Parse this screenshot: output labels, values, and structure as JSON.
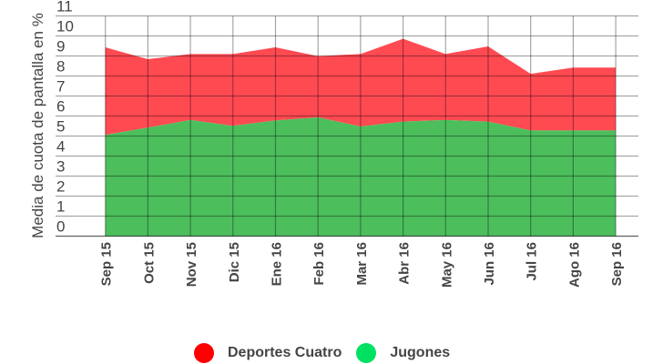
{
  "chart_data": {
    "type": "area",
    "stacked": true,
    "title": "",
    "xlabel": "",
    "ylabel": "Media de cuota de pantalla en %",
    "y_tick_labels": [
      "0",
      "1",
      "2",
      "3",
      "4",
      "5",
      "6",
      "7",
      "8",
      "9",
      "10",
      "11"
    ],
    "ylim": [
      -0.5,
      10.4
    ],
    "grid": true,
    "legend_position": "bottom",
    "categories": [
      "Sep 15",
      "Oct 15",
      "Nov 15",
      "Dic 15",
      "Ene 16",
      "Feb 16",
      "Mar 16",
      "Abr 16",
      "May 16",
      "Jun 16",
      "Jul 16",
      "Ago 16",
      "Sep 16"
    ],
    "series": [
      {
        "name": "Jugones",
        "color": "#4cbf5c",
        "legend_color": "#00e061",
        "values": [
          4.55,
          4.91,
          5.29,
          5.0,
          5.27,
          5.42,
          4.97,
          5.21,
          5.29,
          5.21,
          4.77,
          4.77,
          4.77
        ]
      },
      {
        "name": "Deportes Cuatro",
        "color": "#ff4a52",
        "legend_color": "#ff0000",
        "values": [
          4.37,
          3.42,
          3.3,
          3.59,
          3.65,
          3.06,
          3.62,
          4.14,
          3.3,
          3.76,
          2.83,
          3.14,
          3.14
        ],
        "stacked_totals": [
          8.92,
          8.33,
          8.59,
          8.59,
          8.92,
          8.48,
          8.59,
          9.35,
          8.59,
          8.97,
          7.6,
          7.91,
          7.91
        ]
      }
    ]
  },
  "legend": {
    "items": [
      {
        "label": "Deportes Cuatro",
        "color": "#ff0000"
      },
      {
        "label": "Jugones",
        "color": "#00e061"
      }
    ]
  }
}
